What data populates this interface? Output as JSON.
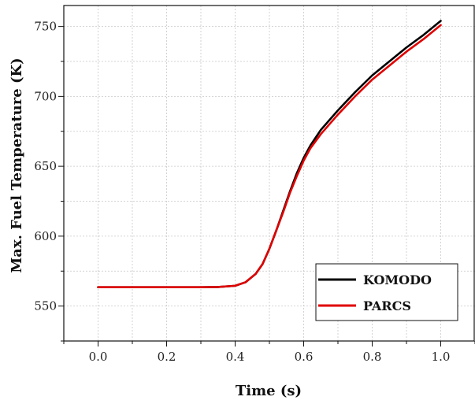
{
  "chart_data": {
    "type": "line",
    "title": "",
    "xlabel": "Time (s)",
    "ylabel": "Max. Fuel Temperature (K)",
    "xlim": [
      -0.1,
      1.1
    ],
    "ylim": [
      525,
      765
    ],
    "xticks": [
      0.0,
      0.2,
      0.4,
      0.6,
      0.8,
      1.0
    ],
    "xtick_labels": [
      "0.0",
      "0.2",
      "0.4",
      "0.6",
      "0.8",
      "1.0"
    ],
    "yticks": [
      550,
      600,
      650,
      700,
      750
    ],
    "ytick_labels": [
      "550",
      "600",
      "650",
      "700",
      "750"
    ],
    "grid": true,
    "legend_position": "bottom-right",
    "series": [
      {
        "name": "KOMODO",
        "color": "#000000",
        "x": [
          0.0,
          0.1,
          0.2,
          0.3,
          0.35,
          0.4,
          0.43,
          0.46,
          0.48,
          0.5,
          0.52,
          0.54,
          0.56,
          0.58,
          0.6,
          0.62,
          0.65,
          0.7,
          0.75,
          0.8,
          0.85,
          0.9,
          0.95,
          1.0
        ],
        "y": [
          563.5,
          563.5,
          563.5,
          563.5,
          563.6,
          564.5,
          567,
          573,
          580,
          591,
          604,
          618,
          632,
          645,
          656,
          665,
          676,
          690,
          703,
          715,
          725,
          735,
          744,
          754
        ]
      },
      {
        "name": "PARCS",
        "color": "#e00000",
        "x": [
          0.0,
          0.1,
          0.2,
          0.3,
          0.35,
          0.4,
          0.43,
          0.46,
          0.48,
          0.5,
          0.52,
          0.54,
          0.56,
          0.58,
          0.6,
          0.62,
          0.65,
          0.7,
          0.75,
          0.8,
          0.85,
          0.9,
          0.95,
          1.0
        ],
        "y": [
          563.5,
          563.5,
          563.5,
          563.5,
          563.6,
          564.5,
          567,
          573,
          580,
          591,
          604,
          617,
          631,
          643,
          654,
          663,
          673,
          687,
          700,
          712,
          722,
          732,
          741,
          751
        ]
      }
    ]
  }
}
